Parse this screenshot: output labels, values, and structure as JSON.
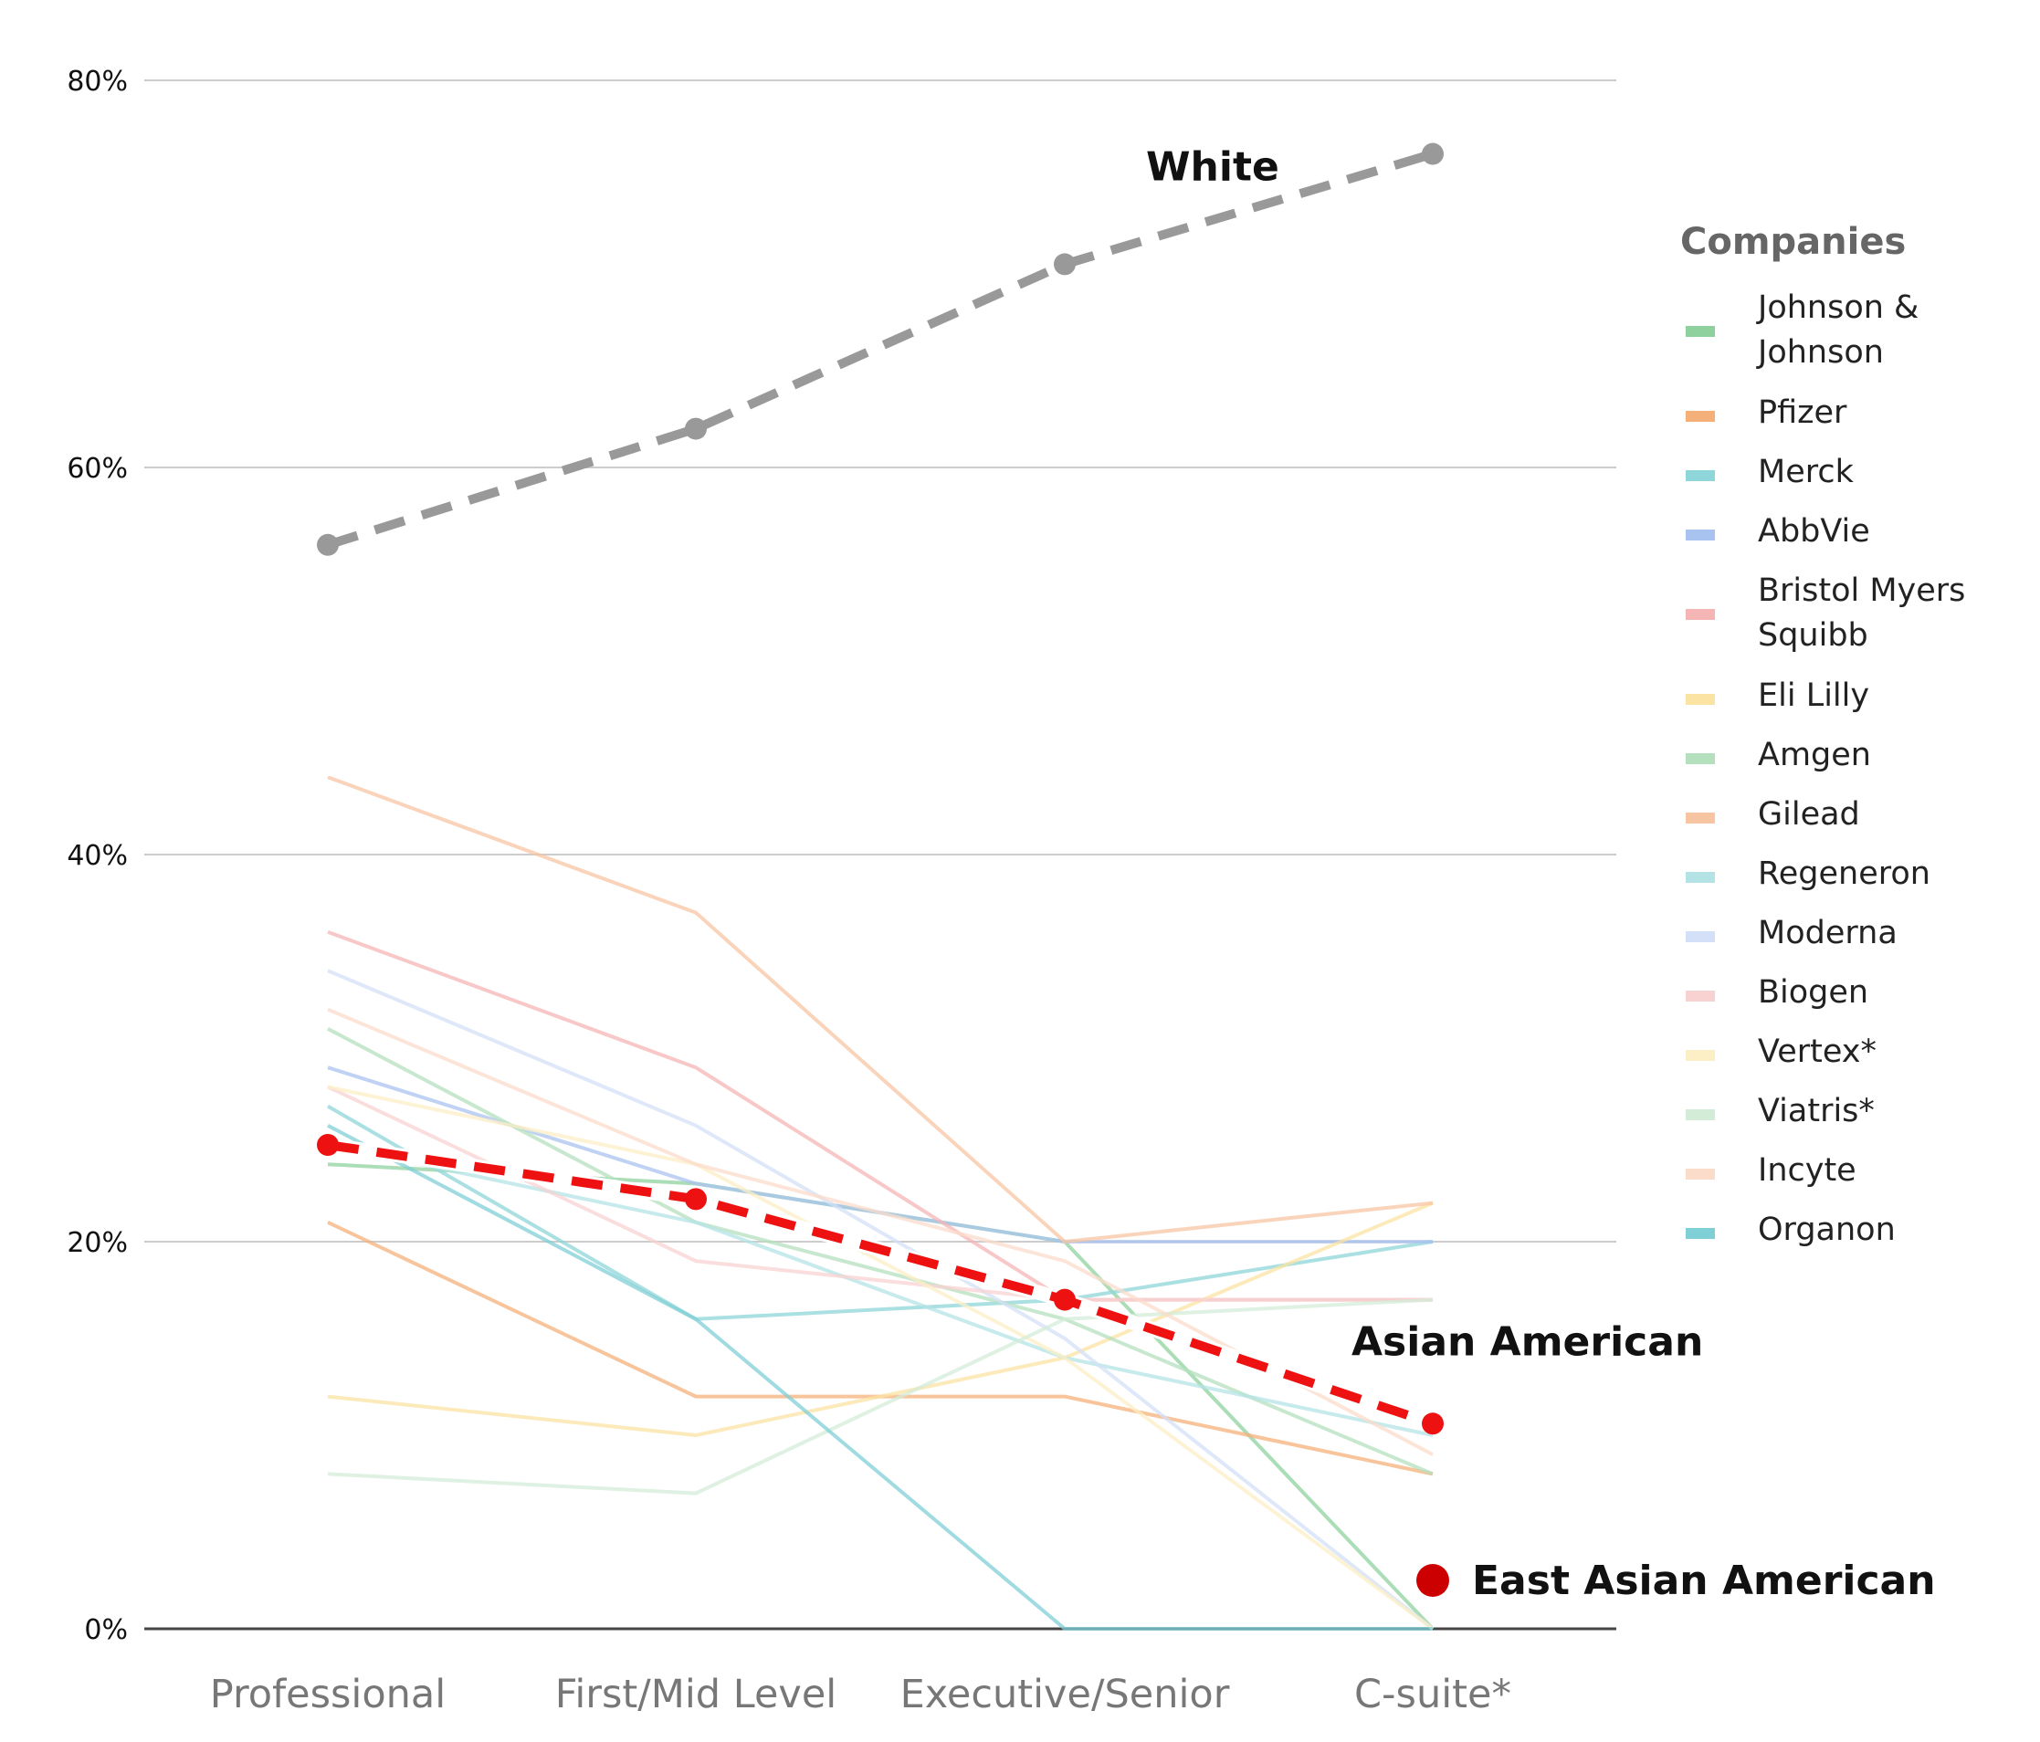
{
  "chart_data": {
    "type": "line",
    "categories": [
      "Professional",
      "First/Mid Level",
      "Executive/Senior",
      "C-suite*"
    ],
    "y_tick_labels": [
      "0%",
      "20%",
      "40%",
      "60%",
      "80%"
    ],
    "ylim": [
      0,
      80
    ],
    "y_unit": "%",
    "grid": true,
    "legend": {
      "title": "Companies",
      "placement": "right",
      "entries": [
        {
          "name": "Johnson & Johnson",
          "lines": [
            "Johnson &",
            "Johnson"
          ],
          "color": "#8fd19e"
        },
        {
          "name": "Pfizer",
          "lines": [
            "Pfizer"
          ],
          "color": "#f5b07a"
        },
        {
          "name": "Merck",
          "lines": [
            "Merck"
          ],
          "color": "#8fd6da"
        },
        {
          "name": "AbbVie",
          "lines": [
            "AbbVie"
          ],
          "color": "#a9c3f0"
        },
        {
          "name": "Bristol Myers Squibb",
          "lines": [
            "Bristol Myers",
            "Squibb"
          ],
          "color": "#f5b5b5"
        },
        {
          "name": "Eli Lilly",
          "lines": [
            "Eli Lilly"
          ],
          "color": "#fbe3a3"
        },
        {
          "name": "Amgen",
          "lines": [
            "Amgen"
          ],
          "color": "#b4e0be"
        },
        {
          "name": "Gilead",
          "lines": [
            "Gilead"
          ],
          "color": "#f8c5a3"
        },
        {
          "name": "Regeneron",
          "lines": [
            "Regeneron"
          ],
          "color": "#b4e3e5"
        },
        {
          "name": "Moderna",
          "lines": [
            "Moderna"
          ],
          "color": "#d3e0f7"
        },
        {
          "name": "Biogen",
          "lines": [
            "Biogen"
          ],
          "color": "#f8d1d1"
        },
        {
          "name": "Vertex*",
          "lines": [
            "Vertex*"
          ],
          "color": "#fcefc6"
        },
        {
          "name": "Viatris*",
          "lines": [
            "Viatris*"
          ],
          "color": "#d3ecd8"
        },
        {
          "name": "Incyte",
          "lines": [
            "Incyte"
          ],
          "color": "#fbdccb"
        },
        {
          "name": "Organon",
          "lines": [
            "Organon"
          ],
          "color": "#7fcfd6"
        }
      ]
    },
    "series": [
      {
        "name": "Johnson & Johnson",
        "values": [
          24,
          23,
          20,
          0
        ],
        "color": "#8fd19e"
      },
      {
        "name": "Pfizer",
        "values": [
          21,
          12,
          12,
          8
        ],
        "color": "#f5b07a"
      },
      {
        "name": "Merck",
        "values": [
          27,
          16,
          17,
          20
        ],
        "color": "#8fd6da"
      },
      {
        "name": "AbbVie",
        "values": [
          29,
          23,
          20,
          20
        ],
        "color": "#a9c3f0"
      },
      {
        "name": "Bristol Myers Squibb",
        "values": [
          36,
          29,
          17,
          17
        ],
        "color": "#f5b5b5"
      },
      {
        "name": "Eli Lilly",
        "values": [
          12,
          10,
          14,
          22
        ],
        "color": "#fbe3a3"
      },
      {
        "name": "Amgen",
        "values": [
          31,
          21,
          16,
          8
        ],
        "color": "#b4e0be"
      },
      {
        "name": "Gilead",
        "values": [
          44,
          37,
          20,
          22
        ],
        "color": "#f8c5a3"
      },
      {
        "name": "Regeneron",
        "values": [
          25,
          21,
          14,
          10
        ],
        "color": "#b4e3e5"
      },
      {
        "name": "Moderna",
        "values": [
          34,
          26,
          15,
          0
        ],
        "color": "#d3e0f7"
      },
      {
        "name": "Biogen",
        "values": [
          28,
          19,
          17,
          17
        ],
        "color": "#f8d1d1"
      },
      {
        "name": "Vertex*",
        "values": [
          28,
          24,
          14,
          0
        ],
        "color": "#fcefc6"
      },
      {
        "name": "Viatris*",
        "values": [
          8,
          7,
          16,
          17
        ],
        "color": "#d3ecd8"
      },
      {
        "name": "Incyte",
        "values": [
          32,
          24,
          19,
          9
        ],
        "color": "#fbdccb"
      },
      {
        "name": "Organon",
        "values": [
          26,
          16,
          0,
          0
        ],
        "color": "#7fcfd6"
      },
      {
        "name": "White",
        "values": [
          56,
          62,
          70.5,
          76.2
        ],
        "color": "#999999",
        "style": "dashed"
      },
      {
        "name": "Asian American",
        "values": [
          25,
          22.2,
          17,
          10.6
        ],
        "color": "#ee1111",
        "style": "dashed"
      }
    ],
    "annotations": [
      {
        "text": "White",
        "series": "White"
      },
      {
        "text": "Asian American",
        "series": "Asian American"
      },
      {
        "text": "East Asian American",
        "marker_color": "#cc0000",
        "y": 2.5,
        "category": "C-suite*"
      }
    ]
  }
}
